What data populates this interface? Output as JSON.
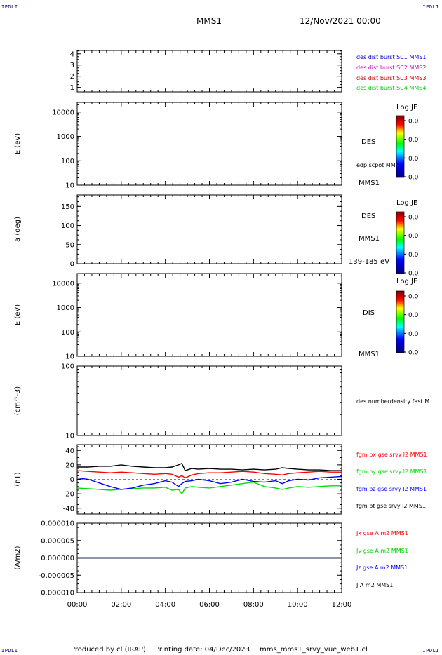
{
  "header": {
    "corner_tl": "IPDLI",
    "corner_tr": "IPDLI",
    "corner_bl": "IPDLI",
    "corner_br": "IPDLI",
    "spacecraft": "MMS1",
    "date": "12/Nov/2021 00:00"
  },
  "footer": {
    "produced_by": "Produced by cl (IRAP)",
    "printing_date": "Printing date: 04/Dec/2023",
    "filename": "mms_mms1_srvy_vue_web1.cl"
  },
  "time_axis": {
    "ticks": [
      "00:00",
      "02:00",
      "04:00",
      "06:00",
      "08:00",
      "10:00",
      "12:00"
    ],
    "range_hours": [
      0,
      12
    ]
  },
  "chart_data": [
    {
      "type": "line",
      "panel": "burst",
      "ylabel": "",
      "ylim": [
        0.6,
        4.3
      ],
      "yticks": [
        "1",
        "2",
        "3",
        "4"
      ],
      "ytick_values": [
        1,
        2,
        3,
        4
      ],
      "series": [
        {
          "name": "des dist burst SC1 MMS1",
          "color": "#0000cc",
          "values": []
        },
        {
          "name": "des dist burst SC2 MMS2",
          "color": "#cc00cc",
          "values": []
        },
        {
          "name": "des dist burst SC3 MMS3",
          "color": "#cc0000",
          "values": []
        },
        {
          "name": "des dist burst SC4 MMS4",
          "color": "#00cc00",
          "values": []
        }
      ]
    },
    {
      "type": "heatmap",
      "panel": "des_energy",
      "ylabel": "E (eV)",
      "scale": "log",
      "ylim": [
        10,
        25000
      ],
      "yticks": [
        "10",
        "100",
        "1000",
        "10000"
      ],
      "ytick_values": [
        10,
        100,
        1000,
        10000
      ],
      "labels": [
        "DES",
        "edp scpot MMS1",
        "MMS1"
      ],
      "colorbar": {
        "title": "Log JE",
        "ticks": [
          "0.0",
          "0.0",
          "0.0",
          "0.0"
        ]
      }
    },
    {
      "type": "heatmap",
      "panel": "des_pitch",
      "ylabel": "a (deg)",
      "ylim": [
        0,
        180
      ],
      "yticks": [
        "0",
        "50",
        "100",
        "150"
      ],
      "ytick_values": [
        0,
        50,
        100,
        150
      ],
      "labels": [
        "DES",
        "MMS1",
        "139-185 eV"
      ],
      "colorbar": {
        "title": "Log JE",
        "ticks": [
          "0.0",
          "0.0",
          "0.0",
          "0.0"
        ]
      }
    },
    {
      "type": "heatmap",
      "panel": "dis_energy",
      "ylabel": "E (eV)",
      "scale": "log",
      "ylim": [
        10,
        25000
      ],
      "yticks": [
        "10",
        "100",
        "1000",
        "10000"
      ],
      "ytick_values": [
        10,
        100,
        1000,
        10000
      ],
      "labels": [
        "DIS",
        "MMS1"
      ],
      "colorbar": {
        "title": "Log JE",
        "ticks": [
          "0.0",
          "0.0",
          "0.0",
          "0.0"
        ]
      }
    },
    {
      "type": "line",
      "panel": "density",
      "ylabel": "(cm^-3)",
      "scale": "log",
      "ylim": [
        10,
        100
      ],
      "yticks": [
        "10",
        "100"
      ],
      "ytick_values": [
        10,
        100
      ],
      "series": [
        {
          "name": "des numberdensity fast M",
          "color": "#000000",
          "values": []
        }
      ]
    },
    {
      "type": "line",
      "panel": "fgm",
      "ylabel": "(nT)",
      "ylim": [
        -48,
        48
      ],
      "yticks": [
        "-40",
        "-20",
        "0",
        "20",
        "40"
      ],
      "ytick_values": [
        -40,
        -20,
        0,
        20,
        40
      ],
      "x": [
        0,
        0.5,
        1,
        1.5,
        2,
        2.5,
        3,
        3.5,
        4,
        4.3,
        4.6,
        4.75,
        4.9,
        5.2,
        5.5,
        6,
        6.5,
        7,
        7.5,
        8,
        8.5,
        9,
        9.3,
        9.6,
        10,
        10.5,
        11,
        11.5,
        12
      ],
      "series": [
        {
          "name": "fgm bx gse srvy l2 MMS1",
          "color": "#ff0000",
          "values": [
            12,
            11,
            10,
            9,
            10,
            9,
            8,
            7,
            8,
            7,
            3,
            5,
            2,
            6,
            8,
            9,
            9,
            10,
            11,
            10,
            8,
            7,
            6,
            8,
            9,
            10,
            11,
            10,
            10
          ]
        },
        {
          "name": "fgm by gse srvy l2 MMS1",
          "color": "#00dd00",
          "values": [
            -12,
            -13,
            -14,
            -15,
            -14,
            -13,
            -12,
            -12,
            -11,
            -15,
            -14,
            -20,
            -12,
            -10,
            -11,
            -12,
            -10,
            -8,
            -6,
            -4,
            -10,
            -12,
            -14,
            -12,
            -10,
            -11,
            -10,
            -9,
            -9
          ]
        },
        {
          "name": "fgm bz gse srvy l2 MMS1",
          "color": "#0000ff",
          "values": [
            2,
            0,
            -5,
            -10,
            -14,
            -12,
            -8,
            -6,
            -2,
            -4,
            -10,
            -6,
            -3,
            -2,
            0,
            -2,
            -6,
            -4,
            0,
            -3,
            -4,
            -2,
            -6,
            -2,
            0,
            -1,
            2,
            3,
            4
          ]
        },
        {
          "name": "fgm bt gse srvy l2 MMS1",
          "color": "#000000",
          "values": [
            17,
            17,
            18,
            18,
            20,
            18,
            17,
            16,
            16,
            17,
            20,
            22,
            12,
            15,
            14,
            15,
            14,
            14,
            13,
            14,
            13,
            14,
            16,
            15,
            14,
            13,
            13,
            12,
            12
          ]
        }
      ]
    },
    {
      "type": "line",
      "panel": "current",
      "ylabel": "(A/m2)",
      "ylim": [
        -1e-05,
        1e-05
      ],
      "yticks": [
        "-0.000010",
        "-0.000005",
        "0.000000",
        "0.000005",
        "0.000010"
      ],
      "ytick_values": [
        -1e-05,
        -5e-06,
        0,
        5e-06,
        1e-05
      ],
      "x": [
        0,
        4,
        4.5,
        4.8,
        5.2,
        6,
        12
      ],
      "series": [
        {
          "name": "Jx gse A m2 MMS1",
          "color": "#ff0000",
          "values": [
            0,
            0,
            0,
            0,
            0,
            0,
            0
          ]
        },
        {
          "name": "Jy gse A m2 MMS1",
          "color": "#00cc00",
          "values": [
            0,
            0,
            0,
            0,
            0,
            0,
            0
          ]
        },
        {
          "name": "Jz gse A m2 MMS1",
          "color": "#0000ff",
          "values": [
            0,
            0,
            0,
            0,
            0,
            0,
            0
          ]
        },
        {
          "name": "J A m2 MMS1",
          "color": "#000000",
          "values": [
            0,
            0,
            0,
            0,
            0,
            0,
            0
          ]
        }
      ]
    }
  ]
}
